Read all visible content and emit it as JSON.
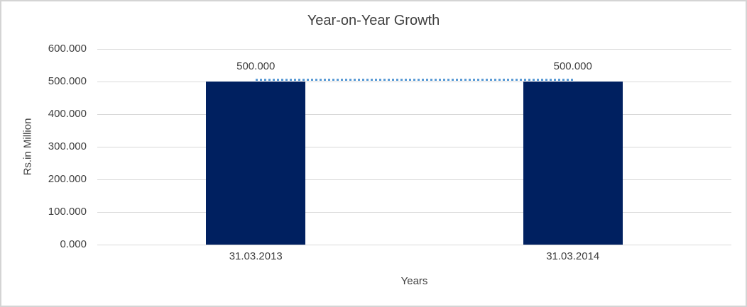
{
  "chart": {
    "title": "Year-on-Year Growth",
    "y_axis_title": "Rs.in Million",
    "x_axis_title": "Years",
    "colors": {
      "bar_fill": "#002060",
      "connector_line": "#5b9bd5",
      "gridline": "#d9d9d9",
      "chart_border": "#d4d4d4",
      "title_text": "#404040",
      "axis_text": "#404040",
      "data_label_text": "#404040",
      "background": "#ffffff"
    }
  },
  "chart_data": {
    "type": "bar",
    "title": "Year-on-Year Growth",
    "xlabel": "Years",
    "ylabel": "Rs.in Million",
    "categories": [
      "31.03.2013",
      "31.03.2014"
    ],
    "series": [
      {
        "name": "bar-series",
        "type": "bar",
        "values": [
          500,
          500
        ]
      },
      {
        "name": "connector-line-series",
        "type": "line",
        "line_style": "dotted",
        "values": [
          500,
          500
        ]
      }
    ],
    "data_labels": [
      "500.000",
      "500.000"
    ],
    "ylim": [
      0,
      600
    ],
    "y_ticks": [
      {
        "value": 600,
        "label": "600.000"
      },
      {
        "value": 500,
        "label": "500.000"
      },
      {
        "value": 400,
        "label": "400.000"
      },
      {
        "value": 300,
        "label": "300.000"
      },
      {
        "value": 200,
        "label": "200.000"
      },
      {
        "value": 100,
        "label": "100.000"
      },
      {
        "value": 0,
        "label": "0.000"
      }
    ],
    "grid": "horizontal",
    "legend": "none"
  }
}
